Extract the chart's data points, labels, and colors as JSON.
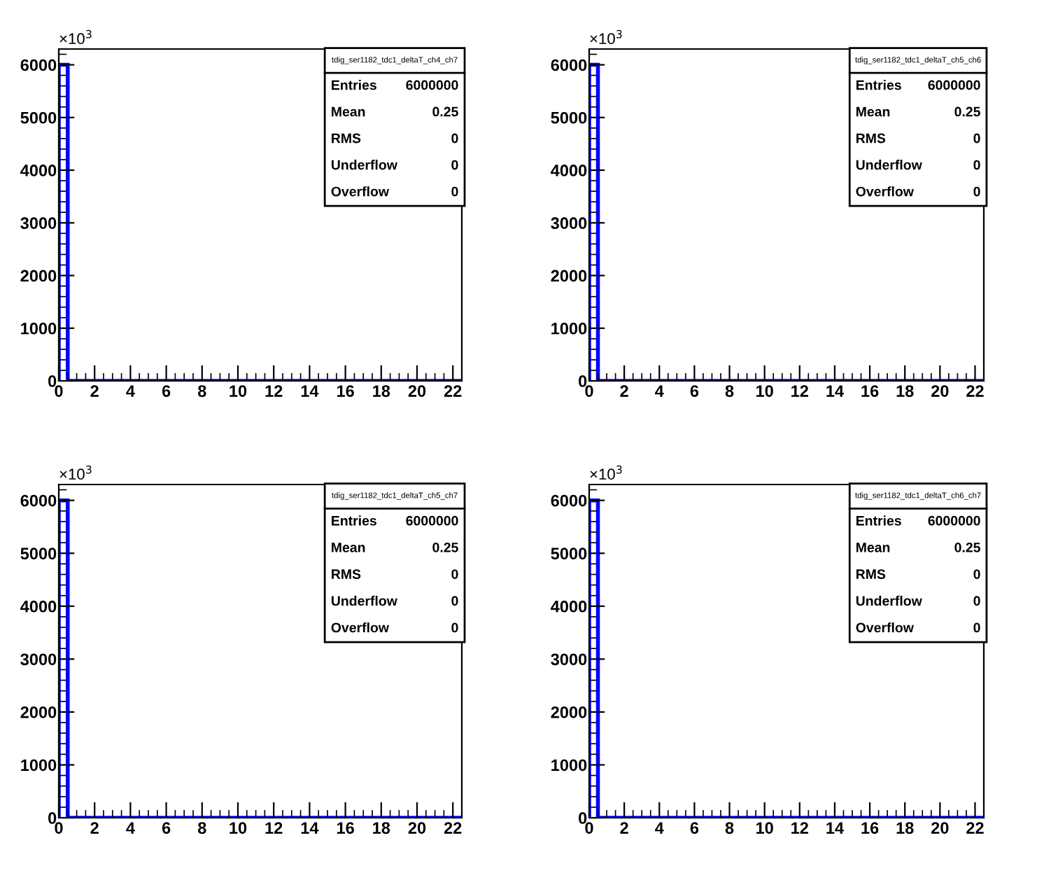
{
  "chart_data": [
    {
      "type": "histogram",
      "title": "tdig_ser1182_tdc1_deltaT_ch4_ch7",
      "bins": [
        0,
        0.5,
        1,
        1.5,
        2,
        2.5,
        3,
        3.5,
        4,
        4.5,
        5,
        5.5,
        6,
        6.5,
        7,
        7.5,
        8,
        8.5,
        9,
        9.5,
        10,
        10.5,
        11,
        11.5,
        12,
        12.5,
        13,
        13.5,
        14,
        14.5,
        15,
        15.5,
        16,
        16.5,
        17,
        17.5,
        18,
        18.5,
        19,
        19.5,
        20,
        20.5,
        21,
        21.5,
        22,
        22.5
      ],
      "values": [
        6000,
        0,
        0,
        0,
        0,
        0,
        0,
        0,
        0,
        0,
        0,
        0,
        0,
        0,
        0,
        0,
        0,
        0,
        0,
        0,
        0,
        0,
        0,
        0,
        0,
        0,
        0,
        0,
        0,
        0,
        0,
        0,
        0,
        0,
        0,
        0,
        0,
        0,
        0,
        0,
        0,
        0,
        0,
        0,
        0
      ],
      "color": "#0000ff",
      "xlim": [
        0,
        22.5
      ],
      "xticks": [
        0,
        2,
        4,
        6,
        8,
        10,
        12,
        14,
        16,
        18,
        20,
        22
      ],
      "ylim": [
        0,
        6300
      ],
      "yticks": [
        0,
        1000,
        2000,
        3000,
        4000,
        5000,
        6000
      ],
      "grid": false,
      "legend": false,
      "annotations": [
        "×10$^{3}$",
        "Entries",
        "6000000",
        "Mean",
        "0.25",
        "RMS",
        "0",
        "Underflow",
        "0",
        "Overflow",
        "0"
      ]
    },
    {
      "type": "histogram",
      "title": "tdig_ser1182_tdc1_deltaT_ch5_ch6",
      "bins": [
        0,
        0.5,
        1,
        1.5,
        2,
        2.5,
        3,
        3.5,
        4,
        4.5,
        5,
        5.5,
        6,
        6.5,
        7,
        7.5,
        8,
        8.5,
        9,
        9.5,
        10,
        10.5,
        11,
        11.5,
        12,
        12.5,
        13,
        13.5,
        14,
        14.5,
        15,
        15.5,
        16,
        16.5,
        17,
        17.5,
        18,
        18.5,
        19,
        19.5,
        20,
        20.5,
        21,
        21.5,
        22,
        22.5
      ],
      "values": [
        6000,
        0,
        0,
        0,
        0,
        0,
        0,
        0,
        0,
        0,
        0,
        0,
        0,
        0,
        0,
        0,
        0,
        0,
        0,
        0,
        0,
        0,
        0,
        0,
        0,
        0,
        0,
        0,
        0,
        0,
        0,
        0,
        0,
        0,
        0,
        0,
        0,
        0,
        0,
        0,
        0,
        0,
        0,
        0,
        0
      ],
      "color": "#0000ff",
      "xlim": [
        0,
        22.5
      ],
      "xticks": [
        0,
        2,
        4,
        6,
        8,
        10,
        12,
        14,
        16,
        18,
        20,
        22
      ],
      "ylim": [
        0,
        6300
      ],
      "yticks": [
        0,
        1000,
        2000,
        3000,
        4000,
        5000,
        6000
      ],
      "grid": false,
      "legend": false,
      "annotations": [
        "×10$^{3}$",
        "Entries",
        "6000000",
        "Mean",
        "0.25",
        "RMS",
        "0",
        "Underflow",
        "0",
        "Overflow",
        "0"
      ]
    },
    {
      "type": "histogram",
      "title": "tdig_ser1182_tdc1_deltaT_ch5_ch7",
      "bins": [
        0,
        0.5,
        1,
        1.5,
        2,
        2.5,
        3,
        3.5,
        4,
        4.5,
        5,
        5.5,
        6,
        6.5,
        7,
        7.5,
        8,
        8.5,
        9,
        9.5,
        10,
        10.5,
        11,
        11.5,
        12,
        12.5,
        13,
        13.5,
        14,
        14.5,
        15,
        15.5,
        16,
        16.5,
        17,
        17.5,
        18,
        18.5,
        19,
        19.5,
        20,
        20.5,
        21,
        21.5,
        22,
        22.5
      ],
      "values": [
        6000,
        0,
        0,
        0,
        0,
        0,
        0,
        0,
        0,
        0,
        0,
        0,
        0,
        0,
        0,
        0,
        0,
        0,
        0,
        0,
        0,
        0,
        0,
        0,
        0,
        0,
        0,
        0,
        0,
        0,
        0,
        0,
        0,
        0,
        0,
        0,
        0,
        0,
        0,
        0,
        0,
        0,
        0,
        0,
        0
      ],
      "color": "#0000ff",
      "xlim": [
        0,
        22.5
      ],
      "xticks": [
        0,
        2,
        4,
        6,
        8,
        10,
        12,
        14,
        16,
        18,
        20,
        22
      ],
      "ylim": [
        0,
        6300
      ],
      "yticks": [
        0,
        1000,
        2000,
        3000,
        4000,
        5000,
        6000
      ],
      "grid": false,
      "legend": false,
      "annotations": [
        "×10$^{3}$",
        "Entries",
        "6000000",
        "Mean",
        "0.25",
        "RMS",
        "0",
        "Underflow",
        "0",
        "Overflow",
        "0"
      ]
    },
    {
      "type": "histogram",
      "title": "tdig_ser1182_tdc1_deltaT_ch6_ch7",
      "bins": [
        0,
        0.5,
        1,
        1.5,
        2,
        2.5,
        3,
        3.5,
        4,
        4.5,
        5,
        5.5,
        6,
        6.5,
        7,
        7.5,
        8,
        8.5,
        9,
        9.5,
        10,
        10.5,
        11,
        11.5,
        12,
        12.5,
        13,
        13.5,
        14,
        14.5,
        15,
        15.5,
        16,
        16.5,
        17,
        17.5,
        18,
        18.5,
        19,
        19.5,
        20,
        20.5,
        21,
        21.5,
        22,
        22.5
      ],
      "values": [
        6000,
        0,
        0,
        0,
        0,
        0,
        0,
        0,
        0,
        0,
        0,
        0,
        0,
        0,
        0,
        0,
        0,
        0,
        0,
        0,
        0,
        0,
        0,
        0,
        0,
        0,
        0,
        0,
        0,
        0,
        0,
        0,
        0,
        0,
        0,
        0,
        0,
        0,
        0,
        0,
        0,
        0,
        0,
        0,
        0
      ],
      "color": "#0000ff",
      "xlim": [
        0,
        22.5
      ],
      "xticks": [
        0,
        2,
        4,
        6,
        8,
        10,
        12,
        14,
        16,
        18,
        20,
        22
      ],
      "ylim": [
        0,
        6300
      ],
      "yticks": [
        0,
        1000,
        2000,
        3000,
        4000,
        5000,
        6000
      ],
      "grid": false,
      "legend": false,
      "annotations": [
        "×10$^{3}$",
        "Entries",
        "6000000",
        "Mean",
        "0.25",
        "RMS",
        "0",
        "Underflow",
        "0",
        "Overflow",
        "0"
      ]
    }
  ]
}
